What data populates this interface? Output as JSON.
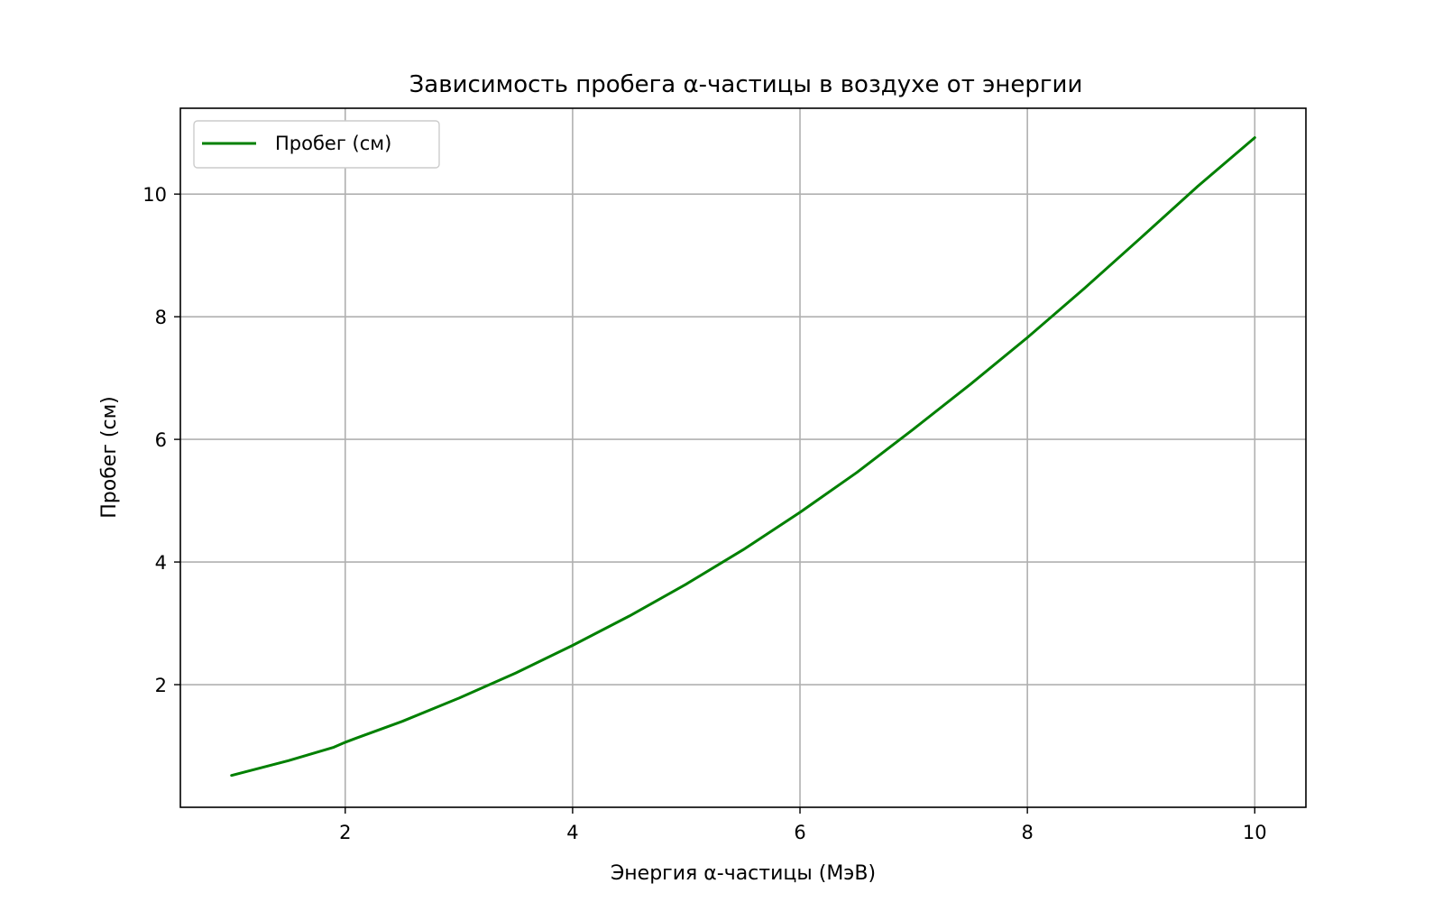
{
  "chart_data": {
    "type": "line",
    "title": "Зависимость пробега α-частицы в воздухе от энергии",
    "xlabel": "Энергия α-частицы (МэВ)",
    "ylabel": "Пробег (см)",
    "xlim": [
      0.55,
      10.45
    ],
    "ylim": [
      0.0,
      11.4
    ],
    "xticks": [
      2,
      4,
      6,
      8,
      10
    ],
    "yticks": [
      2,
      4,
      6,
      8,
      10
    ],
    "grid": true,
    "legend_position": "upper-left",
    "series": [
      {
        "name": "Пробег (см)",
        "color": "#008000",
        "x": [
          1.0,
          1.5,
          1.9,
          2.0,
          2.1,
          2.5,
          3.0,
          3.5,
          4.0,
          4.5,
          5.0,
          5.5,
          6.0,
          6.5,
          7.0,
          7.5,
          8.0,
          8.5,
          9.0,
          9.5,
          10.0
        ],
        "y": [
          0.52,
          0.76,
          0.98,
          1.06,
          1.13,
          1.4,
          1.78,
          2.19,
          2.64,
          3.12,
          3.64,
          4.2,
          4.81,
          5.46,
          6.17,
          6.9,
          7.66,
          8.46,
          9.29,
          10.13,
          10.92
        ]
      }
    ]
  }
}
